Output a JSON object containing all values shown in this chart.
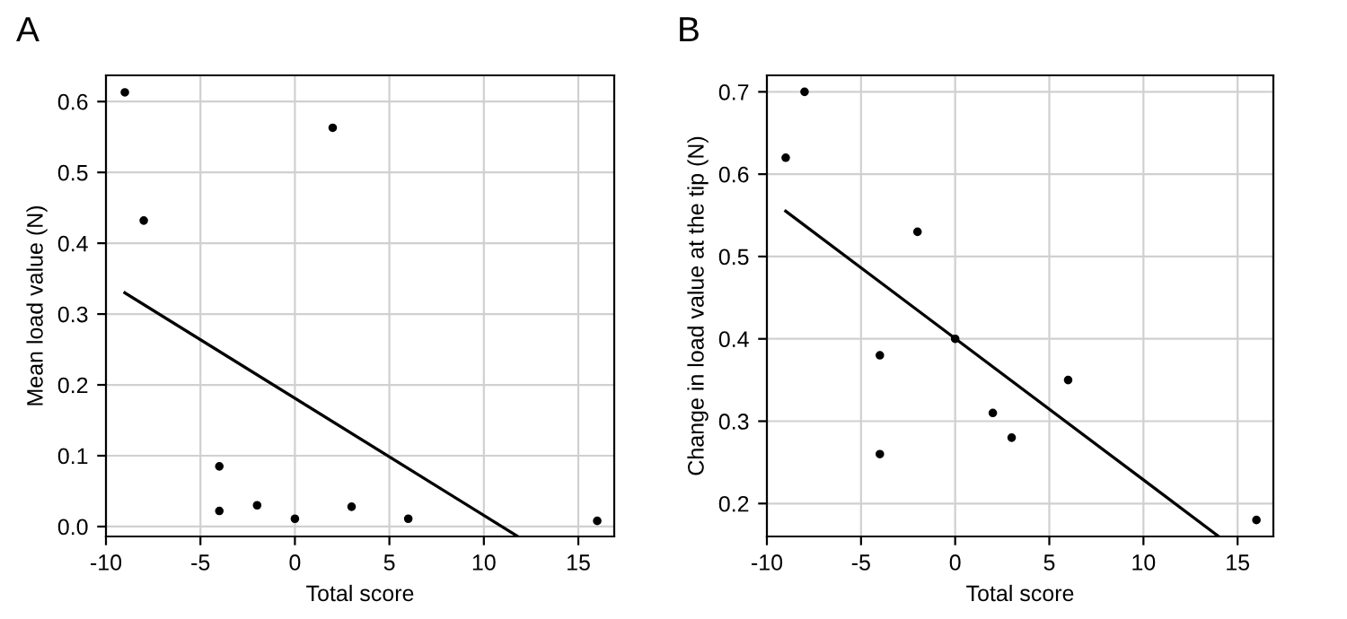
{
  "chart_data": [
    {
      "type": "scatter",
      "annotations": [
        "A"
      ],
      "xlabel": "Total score",
      "ylabel": "Mean load value (N)",
      "xlim": [
        -10,
        16.9
      ],
      "ylim": [
        -0.014,
        0.637
      ],
      "xticks": [
        -10,
        -5,
        0,
        5,
        10,
        15
      ],
      "yticks": [
        {
          "value": 0,
          "label": "0.0"
        },
        0.1,
        0.2,
        0.3,
        0.4,
        0.5,
        0.6
      ],
      "grid": true,
      "marker": "circle",
      "series": [
        {
          "color": "#000000",
          "x": [
            -9,
            -8,
            -4,
            -4,
            -2,
            0,
            2,
            3,
            6,
            16
          ],
          "values": [
            0.613,
            0.432,
            0.085,
            0.022,
            0.03,
            0.011,
            0.563,
            0.028,
            0.011,
            0.008
          ]
        },
        {
          "type": "line",
          "marker": "none",
          "color": "#000000",
          "x": [
            -9,
            11.8
          ],
          "values": [
            0.33,
            -0.014
          ]
        }
      ]
    },
    {
      "type": "scatter",
      "annotations": [
        "B"
      ],
      "xlabel": "Total score",
      "ylabel": "Change in load value at the tip (N)",
      "xlim": [
        -10,
        16.9
      ],
      "ylim": [
        0.16,
        0.72
      ],
      "xticks": [
        -10,
        -5,
        0,
        5,
        10,
        15
      ],
      "yticks": [
        0.2,
        0.3,
        0.4,
        0.5,
        0.6,
        0.7
      ],
      "grid": true,
      "marker": "circle",
      "series": [
        {
          "color": "#000000",
          "x": [
            -9,
            -8,
            -4,
            -4,
            -2,
            0,
            2,
            3,
            6,
            16
          ],
          "values": [
            0.62,
            0.7,
            0.38,
            0.26,
            0.53,
            0.4,
            0.31,
            0.28,
            0.35,
            0.18
          ]
        },
        {
          "type": "line",
          "marker": "none",
          "color": "#000000",
          "x": [
            -9,
            14
          ],
          "values": [
            0.555,
            0.16
          ]
        }
      ]
    }
  ]
}
